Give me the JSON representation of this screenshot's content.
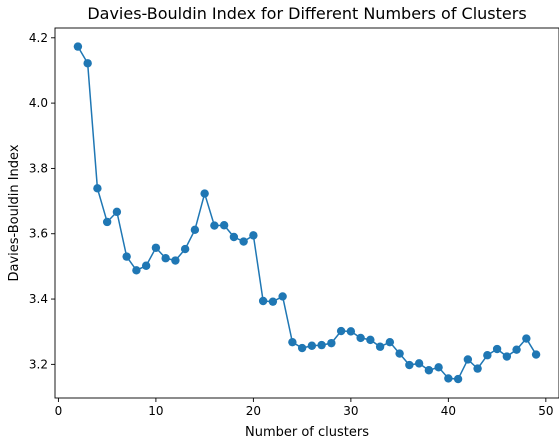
{
  "chart_data": {
    "type": "line",
    "title": "Davies-Bouldin Index for Different Numbers of Clusters",
    "xlabel": "Number of clusters",
    "ylabel": "Davies-Bouldin Index",
    "xlim": [
      -0.35,
      51.35
    ],
    "ylim": [
      3.097,
      4.23
    ],
    "xticks": [
      0,
      10,
      20,
      30,
      40,
      50
    ],
    "yticks": [
      3.2,
      3.4,
      3.6,
      3.8,
      4.0,
      4.2
    ],
    "ytick_labels": [
      "3.2",
      "3.4",
      "3.6",
      "3.8",
      "4.0",
      "4.2"
    ],
    "grid": false,
    "color": "#1f77b4",
    "marker": "circle",
    "series": [
      {
        "x": [
          2,
          3,
          4,
          5,
          6,
          7,
          8,
          9,
          10,
          11,
          12,
          13,
          14,
          15,
          16,
          17,
          18,
          19,
          20,
          21,
          22,
          23,
          24,
          25,
          26,
          27,
          28,
          29,
          30,
          31,
          32,
          33,
          34,
          35,
          36,
          37,
          38,
          39,
          40,
          41,
          42,
          43,
          44,
          45,
          46,
          47,
          48,
          49
        ],
        "values": [
          4.173,
          4.122,
          3.739,
          3.636,
          3.667,
          3.53,
          3.488,
          3.502,
          3.557,
          3.525,
          3.518,
          3.553,
          3.612,
          3.723,
          3.625,
          3.626,
          3.59,
          3.576,
          3.595,
          3.394,
          3.392,
          3.408,
          3.268,
          3.25,
          3.257,
          3.259,
          3.265,
          3.302,
          3.301,
          3.281,
          3.275,
          3.254,
          3.268,
          3.233,
          3.198,
          3.203,
          3.182,
          3.191,
          3.157,
          3.155,
          3.215,
          3.187,
          3.228,
          3.247,
          3.224,
          3.245,
          3.279,
          3.23
        ]
      }
    ]
  }
}
